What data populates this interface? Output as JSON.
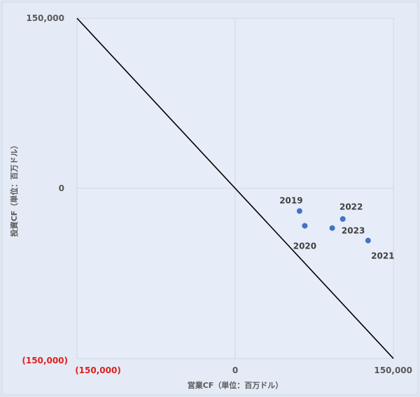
{
  "chart_data": {
    "type": "scatter",
    "xlabel": "営業CF（単位：百万ドル）",
    "ylabel": "投資CF（単位：百万ドル）",
    "xlim": [
      -150000,
      150000
    ],
    "ylim": [
      -150000,
      150000
    ],
    "x_ticks": [
      {
        "value": -150000,
        "label": "(150,000)",
        "color": "#e0201c"
      },
      {
        "value": 0,
        "label": "0",
        "color": "#595959"
      },
      {
        "value": 150000,
        "label": "150,000",
        "color": "#595959"
      }
    ],
    "y_ticks": [
      {
        "value": -150000,
        "label": "(150,000)",
        "color": "#e0201c"
      },
      {
        "value": 0,
        "label": "0",
        "color": "#595959"
      },
      {
        "value": 150000,
        "label": "150,000",
        "color": "#595959"
      }
    ],
    "grid": true,
    "point_color": "#4472c4",
    "points": [
      {
        "label": "2019",
        "x": 61000,
        "y": -20000
      },
      {
        "label": "2020",
        "x": 66000,
        "y": -33000
      },
      {
        "label": "2021",
        "x": 126000,
        "y": -46000
      },
      {
        "label": "2022",
        "x": 102000,
        "y": -27000
      },
      {
        "label": "2023",
        "x": 92000,
        "y": -35000
      }
    ],
    "reference_line": {
      "x": [
        -150000,
        150000
      ],
      "y": [
        150000,
        -150000
      ],
      "color": "#000000"
    }
  }
}
